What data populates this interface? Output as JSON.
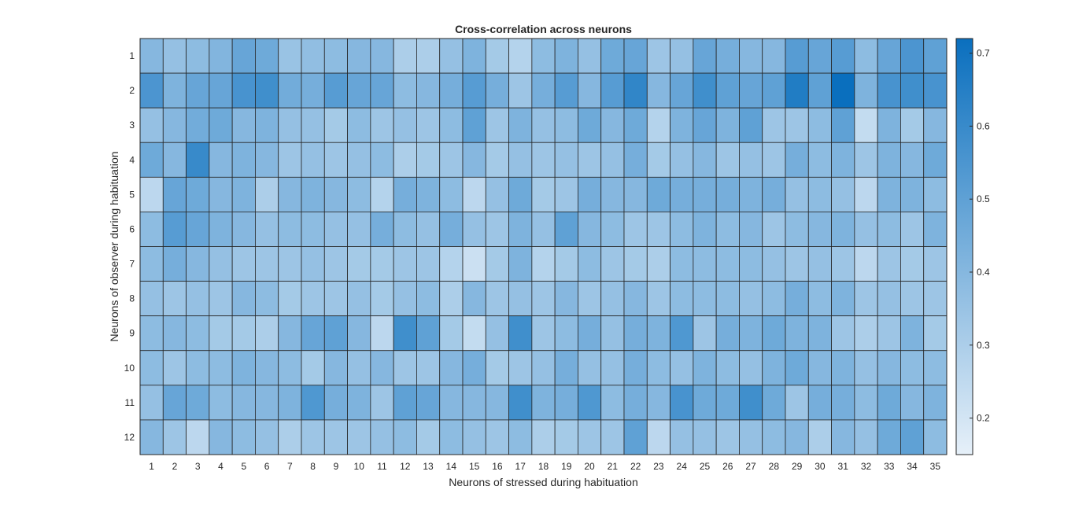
{
  "chart_data": {
    "type": "heatmap",
    "title": "Cross-correlation across neurons",
    "xlabel": "Neurons of stressed during habituation",
    "ylabel": "Neurons of observer during habituation",
    "x_categories": [
      "1",
      "2",
      "3",
      "4",
      "5",
      "6",
      "7",
      "8",
      "9",
      "10",
      "11",
      "12",
      "13",
      "14",
      "15",
      "16",
      "17",
      "18",
      "19",
      "20",
      "21",
      "22",
      "23",
      "24",
      "25",
      "26",
      "27",
      "28",
      "29",
      "30",
      "31",
      "32",
      "33",
      "34",
      "35"
    ],
    "y_categories": [
      "1",
      "2",
      "3",
      "4",
      "5",
      "6",
      "7",
      "8",
      "9",
      "10",
      "11",
      "12"
    ],
    "colorbar": {
      "range": [
        0.15,
        0.72
      ],
      "ticks": [
        "0.2",
        "0.3",
        "0.4",
        "0.5",
        "0.6",
        "0.7"
      ],
      "tick_values": [
        0.2,
        0.3,
        0.4,
        0.5,
        0.6,
        0.7
      ],
      "low_color": "#e6f0f9",
      "high_color": "#0a6fbe"
    },
    "values": [
      [
        0.4,
        0.36,
        0.38,
        0.41,
        0.48,
        0.46,
        0.35,
        0.37,
        0.38,
        0.4,
        0.4,
        0.3,
        0.3,
        0.36,
        0.42,
        0.32,
        0.28,
        0.38,
        0.42,
        0.36,
        0.46,
        0.48,
        0.34,
        0.36,
        0.48,
        0.44,
        0.4,
        0.4,
        0.52,
        0.48,
        0.52,
        0.38,
        0.48,
        0.55,
        0.5
      ],
      [
        0.55,
        0.42,
        0.48,
        0.48,
        0.56,
        0.58,
        0.45,
        0.44,
        0.52,
        0.48,
        0.48,
        0.38,
        0.4,
        0.44,
        0.52,
        0.44,
        0.34,
        0.44,
        0.52,
        0.4,
        0.52,
        0.62,
        0.4,
        0.48,
        0.58,
        0.5,
        0.48,
        0.5,
        0.66,
        0.5,
        0.72,
        0.42,
        0.56,
        0.58,
        0.56
      ],
      [
        0.36,
        0.4,
        0.45,
        0.46,
        0.4,
        0.42,
        0.36,
        0.36,
        0.32,
        0.38,
        0.34,
        0.36,
        0.34,
        0.38,
        0.5,
        0.34,
        0.42,
        0.36,
        0.38,
        0.46,
        0.4,
        0.46,
        0.28,
        0.42,
        0.48,
        0.42,
        0.5,
        0.34,
        0.34,
        0.38,
        0.5,
        0.24,
        0.42,
        0.32,
        0.4
      ],
      [
        0.46,
        0.4,
        0.6,
        0.4,
        0.42,
        0.4,
        0.34,
        0.36,
        0.34,
        0.36,
        0.38,
        0.3,
        0.32,
        0.34,
        0.4,
        0.32,
        0.36,
        0.34,
        0.36,
        0.34,
        0.36,
        0.44,
        0.32,
        0.36,
        0.4,
        0.34,
        0.36,
        0.34,
        0.44,
        0.38,
        0.42,
        0.34,
        0.42,
        0.4,
        0.46
      ],
      [
        0.26,
        0.48,
        0.46,
        0.4,
        0.42,
        0.3,
        0.4,
        0.42,
        0.4,
        0.38,
        0.28,
        0.44,
        0.42,
        0.38,
        0.26,
        0.36,
        0.46,
        0.32,
        0.34,
        0.44,
        0.4,
        0.4,
        0.46,
        0.44,
        0.44,
        0.44,
        0.42,
        0.44,
        0.36,
        0.38,
        0.36,
        0.26,
        0.42,
        0.42,
        0.38
      ],
      [
        0.38,
        0.52,
        0.48,
        0.42,
        0.4,
        0.36,
        0.38,
        0.38,
        0.36,
        0.36,
        0.44,
        0.38,
        0.36,
        0.44,
        0.36,
        0.34,
        0.42,
        0.36,
        0.5,
        0.4,
        0.38,
        0.34,
        0.34,
        0.38,
        0.42,
        0.38,
        0.4,
        0.34,
        0.38,
        0.4,
        0.42,
        0.36,
        0.38,
        0.34,
        0.42
      ],
      [
        0.38,
        0.44,
        0.4,
        0.36,
        0.34,
        0.34,
        0.34,
        0.36,
        0.34,
        0.32,
        0.32,
        0.34,
        0.34,
        0.28,
        0.22,
        0.32,
        0.42,
        0.28,
        0.32,
        0.38,
        0.34,
        0.32,
        0.3,
        0.38,
        0.38,
        0.38,
        0.38,
        0.36,
        0.34,
        0.36,
        0.34,
        0.26,
        0.34,
        0.32,
        0.34
      ],
      [
        0.36,
        0.34,
        0.36,
        0.34,
        0.4,
        0.38,
        0.32,
        0.34,
        0.34,
        0.36,
        0.32,
        0.36,
        0.38,
        0.3,
        0.4,
        0.34,
        0.36,
        0.34,
        0.4,
        0.34,
        0.36,
        0.4,
        0.34,
        0.38,
        0.38,
        0.38,
        0.36,
        0.38,
        0.44,
        0.38,
        0.42,
        0.34,
        0.36,
        0.34,
        0.34
      ],
      [
        0.38,
        0.4,
        0.38,
        0.32,
        0.32,
        0.3,
        0.4,
        0.48,
        0.5,
        0.4,
        0.26,
        0.58,
        0.5,
        0.32,
        0.24,
        0.36,
        0.58,
        0.34,
        0.38,
        0.44,
        0.36,
        0.44,
        0.42,
        0.54,
        0.34,
        0.44,
        0.42,
        0.46,
        0.42,
        0.42,
        0.34,
        0.3,
        0.34,
        0.42,
        0.32
      ],
      [
        0.38,
        0.34,
        0.38,
        0.38,
        0.42,
        0.4,
        0.38,
        0.32,
        0.4,
        0.36,
        0.4,
        0.34,
        0.34,
        0.4,
        0.44,
        0.32,
        0.34,
        0.36,
        0.44,
        0.36,
        0.36,
        0.44,
        0.38,
        0.36,
        0.42,
        0.38,
        0.36,
        0.42,
        0.46,
        0.4,
        0.42,
        0.36,
        0.4,
        0.38,
        0.38
      ],
      [
        0.36,
        0.48,
        0.46,
        0.38,
        0.4,
        0.4,
        0.42,
        0.54,
        0.44,
        0.42,
        0.34,
        0.5,
        0.48,
        0.4,
        0.4,
        0.4,
        0.58,
        0.42,
        0.44,
        0.54,
        0.38,
        0.44,
        0.4,
        0.56,
        0.46,
        0.46,
        0.58,
        0.46,
        0.34,
        0.44,
        0.44,
        0.38,
        0.46,
        0.4,
        0.42
      ],
      [
        0.4,
        0.34,
        0.26,
        0.4,
        0.38,
        0.36,
        0.3,
        0.34,
        0.34,
        0.34,
        0.36,
        0.38,
        0.32,
        0.38,
        0.36,
        0.34,
        0.38,
        0.3,
        0.32,
        0.34,
        0.34,
        0.5,
        0.26,
        0.36,
        0.36,
        0.34,
        0.36,
        0.38,
        0.4,
        0.3,
        0.4,
        0.36,
        0.46,
        0.5,
        0.38
      ]
    ]
  }
}
